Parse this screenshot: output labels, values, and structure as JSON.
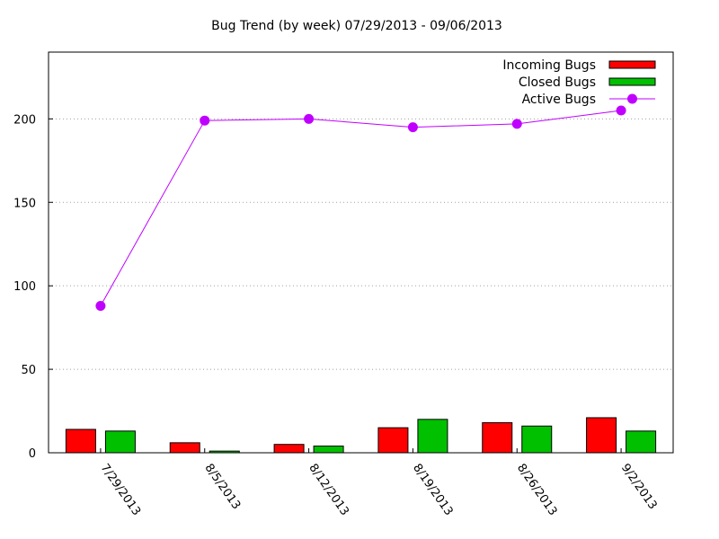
{
  "chart_data": {
    "type": "bar",
    "title": "Bug Trend (by week) 07/29/2013 - 09/06/2013",
    "xlabel": "",
    "ylabel": "",
    "categories": [
      "7/29/2013",
      "8/5/2013",
      "8/12/2013",
      "8/19/2013",
      "8/26/2013",
      "9/2/2013"
    ],
    "ylim": [
      0,
      240
    ],
    "yticks": [
      0,
      50,
      100,
      150,
      200
    ],
    "grid": true,
    "legend_position": "top-right",
    "series": [
      {
        "name": "Incoming Bugs",
        "type": "bar",
        "color": "#ff0000",
        "values": [
          14,
          6,
          5,
          15,
          18,
          21
        ]
      },
      {
        "name": "Closed Bugs",
        "type": "bar",
        "color": "#00c000",
        "values": [
          13,
          1,
          4,
          20,
          16,
          13
        ]
      },
      {
        "name": "Active Bugs",
        "type": "line",
        "color": "#c000ff",
        "values": [
          88,
          199,
          200,
          195,
          197,
          205
        ]
      }
    ]
  }
}
